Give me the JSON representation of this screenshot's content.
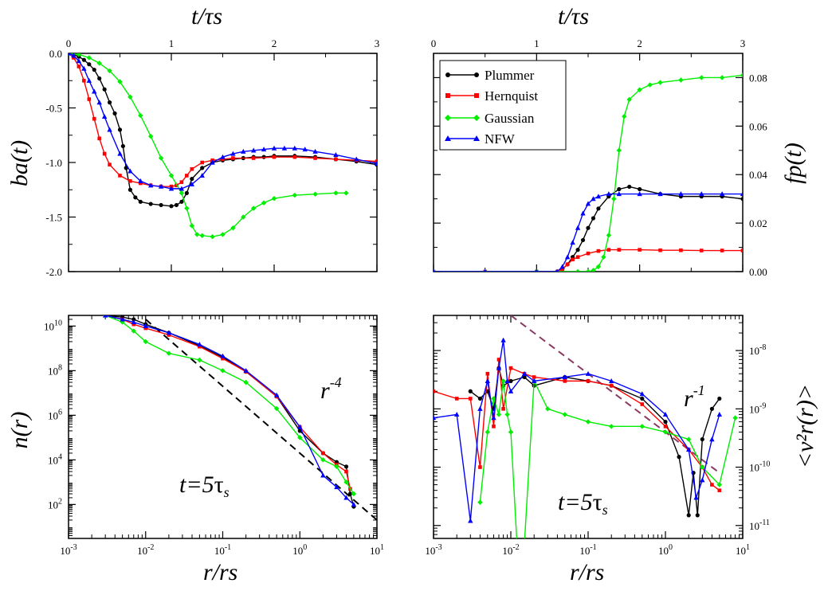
{
  "chart_data": [
    {
      "id": "ba",
      "type": "line",
      "xlabel": "t/τs",
      "ylabel": "ba(t)",
      "xlim": [
        0,
        3
      ],
      "ylim": [
        -2.0,
        0.0
      ],
      "xticks": [
        "0",
        "1",
        "2",
        "3"
      ],
      "yticks": [
        "0.0",
        "-0.5",
        "-1.0",
        "-1.5",
        "-2.0"
      ],
      "series": [
        {
          "name": "Plummer",
          "color": "#000000",
          "marker": "circle",
          "x": [
            0.0,
            0.05,
            0.1,
            0.15,
            0.2,
            0.25,
            0.3,
            0.35,
            0.4,
            0.45,
            0.5,
            0.53,
            0.56,
            0.6,
            0.65,
            0.7,
            0.8,
            0.9,
            1.0,
            1.05,
            1.1,
            1.15,
            1.2,
            1.3,
            1.4,
            1.5,
            1.6,
            1.7,
            1.8,
            1.9,
            2.0,
            2.2,
            2.4,
            2.6,
            2.8,
            3.0
          ],
          "y": [
            0.0,
            -0.01,
            -0.03,
            -0.06,
            -0.1,
            -0.15,
            -0.23,
            -0.33,
            -0.45,
            -0.55,
            -0.7,
            -0.85,
            -1.05,
            -1.25,
            -1.32,
            -1.36,
            -1.38,
            -1.39,
            -1.4,
            -1.39,
            -1.36,
            -1.28,
            -1.15,
            -1.05,
            -1.0,
            -0.98,
            -0.97,
            -0.96,
            -0.95,
            -0.95,
            -0.94,
            -0.94,
            -0.95,
            -0.97,
            -0.99,
            -1.02
          ]
        },
        {
          "name": "Hernquist",
          "color": "#ff0000",
          "marker": "square",
          "x": [
            0.0,
            0.05,
            0.1,
            0.15,
            0.2,
            0.25,
            0.3,
            0.35,
            0.4,
            0.5,
            0.6,
            0.7,
            0.8,
            0.9,
            1.0,
            1.05,
            1.1,
            1.15,
            1.2,
            1.3,
            1.4,
            1.5,
            1.6,
            1.8,
            2.0,
            2.2,
            2.4,
            2.6,
            2.8,
            3.0
          ],
          "y": [
            0.0,
            -0.04,
            -0.12,
            -0.25,
            -0.42,
            -0.6,
            -0.78,
            -0.92,
            -1.02,
            -1.12,
            -1.17,
            -1.19,
            -1.21,
            -1.22,
            -1.22,
            -1.21,
            -1.18,
            -1.12,
            -1.06,
            -1.0,
            -0.98,
            -0.97,
            -0.96,
            -0.96,
            -0.95,
            -0.95,
            -0.96,
            -0.97,
            -0.98,
            -0.99
          ]
        },
        {
          "name": "Gaussian",
          "color": "#00ee00",
          "marker": "diamond",
          "x": [
            0.0,
            0.1,
            0.2,
            0.3,
            0.4,
            0.5,
            0.6,
            0.7,
            0.8,
            0.9,
            1.0,
            1.1,
            1.15,
            1.2,
            1.25,
            1.3,
            1.4,
            1.5,
            1.6,
            1.7,
            1.8,
            1.9,
            2.0,
            2.2,
            2.4,
            2.6,
            2.7
          ],
          "y": [
            0.0,
            -0.01,
            -0.04,
            -0.09,
            -0.16,
            -0.26,
            -0.4,
            -0.57,
            -0.76,
            -0.96,
            -1.12,
            -1.28,
            -1.42,
            -1.58,
            -1.66,
            -1.67,
            -1.68,
            -1.66,
            -1.6,
            -1.5,
            -1.42,
            -1.37,
            -1.33,
            -1.3,
            -1.29,
            -1.28,
            -1.28
          ]
        },
        {
          "name": "NFW",
          "color": "#0000ff",
          "marker": "triangle",
          "x": [
            0.0,
            0.05,
            0.1,
            0.15,
            0.2,
            0.25,
            0.3,
            0.35,
            0.4,
            0.5,
            0.6,
            0.7,
            0.8,
            0.9,
            1.0,
            1.1,
            1.2,
            1.3,
            1.4,
            1.5,
            1.6,
            1.7,
            1.8,
            1.9,
            2.0,
            2.1,
            2.2,
            2.3,
            2.4,
            2.6,
            2.8,
            3.0
          ],
          "y": [
            0.0,
            -0.02,
            -0.07,
            -0.14,
            -0.25,
            -0.35,
            -0.45,
            -0.58,
            -0.7,
            -0.92,
            -1.08,
            -1.17,
            -1.21,
            -1.22,
            -1.24,
            -1.24,
            -1.2,
            -1.12,
            -1.0,
            -0.95,
            -0.92,
            -0.9,
            -0.89,
            -0.88,
            -0.87,
            -0.87,
            -0.87,
            -0.88,
            -0.9,
            -0.93,
            -0.97,
            -1.01
          ]
        }
      ]
    },
    {
      "id": "fp",
      "type": "line",
      "xlabel": "t/τs",
      "ylabel": "fp(t)",
      "xlim": [
        0,
        3
      ],
      "ylim": [
        0.0,
        0.09
      ],
      "xticks": [
        "0",
        "1",
        "2",
        "3"
      ],
      "yticks": [
        "0.00",
        "0.02",
        "0.04",
        "0.06",
        "0.08"
      ],
      "legend": {
        "position": "top-left",
        "entries": [
          "Plummer",
          "Hernquist",
          "Gaussian",
          "NFW"
        ]
      },
      "series": [
        {
          "name": "Plummer",
          "color": "#000000",
          "marker": "circle",
          "x": [
            0.0,
            0.5,
            1.0,
            1.2,
            1.25,
            1.3,
            1.35,
            1.4,
            1.45,
            1.5,
            1.55,
            1.6,
            1.7,
            1.8,
            1.9,
            2.0,
            2.2,
            2.4,
            2.6,
            2.8,
            3.0
          ],
          "y": [
            0.0,
            0.0,
            0.0,
            0.0,
            0.001,
            0.003,
            0.006,
            0.009,
            0.013,
            0.018,
            0.022,
            0.026,
            0.031,
            0.034,
            0.035,
            0.034,
            0.032,
            0.031,
            0.031,
            0.031,
            0.03
          ]
        },
        {
          "name": "Hernquist",
          "color": "#ff0000",
          "marker": "square",
          "x": [
            0.0,
            0.5,
            1.0,
            1.2,
            1.25,
            1.3,
            1.35,
            1.4,
            1.5,
            1.6,
            1.7,
            1.8,
            2.0,
            2.2,
            2.4,
            2.6,
            2.8,
            3.0
          ],
          "y": [
            0.0,
            0.0,
            0.0,
            0.0,
            0.001,
            0.003,
            0.005,
            0.006,
            0.0075,
            0.0085,
            0.009,
            0.009,
            0.009,
            0.0088,
            0.0088,
            0.0087,
            0.0087,
            0.0087
          ]
        },
        {
          "name": "Gaussian",
          "color": "#00ee00",
          "marker": "diamond",
          "x": [
            0.0,
            0.5,
            1.0,
            1.4,
            1.5,
            1.55,
            1.6,
            1.65,
            1.7,
            1.75,
            1.8,
            1.85,
            1.9,
            2.0,
            2.1,
            2.2,
            2.4,
            2.6,
            2.8,
            3.0
          ],
          "y": [
            0.0,
            0.0,
            0.0,
            0.0,
            0.0,
            0.0005,
            0.002,
            0.006,
            0.015,
            0.03,
            0.05,
            0.064,
            0.071,
            0.075,
            0.077,
            0.078,
            0.079,
            0.08,
            0.08,
            0.081
          ]
        },
        {
          "name": "NFW",
          "color": "#0000ff",
          "marker": "triangle",
          "x": [
            0.0,
            0.5,
            1.0,
            1.2,
            1.25,
            1.3,
            1.35,
            1.4,
            1.45,
            1.5,
            1.55,
            1.6,
            1.7,
            1.8,
            2.0,
            2.2,
            2.4,
            2.6,
            2.8,
            3.0
          ],
          "y": [
            0.0,
            0.0,
            0.0,
            0.0,
            0.002,
            0.006,
            0.012,
            0.018,
            0.024,
            0.028,
            0.03,
            0.031,
            0.032,
            0.032,
            0.032,
            0.032,
            0.032,
            0.032,
            0.032,
            0.032
          ]
        }
      ]
    },
    {
      "id": "nr",
      "type": "line",
      "xlabel": "r/rs",
      "ylabel": "n(r)",
      "xscale": "log",
      "yscale": "log",
      "xlim": [
        0.001,
        10
      ],
      "ylim": [
        3,
        30000000000
      ],
      "xticks": [
        {
          "base": "10",
          "exp": "-3"
        },
        {
          "base": "10",
          "exp": "-2"
        },
        {
          "base": "10",
          "exp": "-1"
        },
        {
          "base": "10",
          "exp": "0"
        },
        {
          "base": "10",
          "exp": "1"
        }
      ],
      "yticks": [
        {
          "v": 100,
          "base": "10",
          "exp": "2"
        },
        {
          "v": 10000,
          "base": "10",
          "exp": "4"
        },
        {
          "v": 1000000,
          "base": "10",
          "exp": "6"
        },
        {
          "v": 100000000,
          "base": "10",
          "exp": "8"
        },
        {
          "v": 10000000000,
          "base": "10",
          "exp": "10"
        }
      ],
      "annotation_time": {
        "lhs": "t=5",
        "tau": "τ",
        "sub": "s"
      },
      "annotation_slope": {
        "base": "r",
        "exp": "-4"
      },
      "reference_line": {
        "x": [
          0.01,
          10
        ],
        "y": [
          20000000000,
          20
        ],
        "style": "dashed",
        "color": "#000000"
      },
      "series": [
        {
          "name": "Plummer",
          "color": "#000000",
          "marker": "circle",
          "x": [
            0.003,
            0.005,
            0.007,
            0.01,
            0.02,
            0.05,
            0.1,
            0.2,
            0.5,
            1.0,
            2.0,
            3.0,
            4.0,
            4.5,
            5.0
          ],
          "y": [
            30000000000,
            25000000000,
            20000000000,
            12000000000,
            5000000000,
            1300000000,
            400000000,
            90000000,
            7000000,
            200000,
            20000,
            8000,
            5000,
            300,
            80
          ]
        },
        {
          "name": "Hernquist",
          "color": "#ff0000",
          "marker": "square",
          "x": [
            0.003,
            0.005,
            0.007,
            0.01,
            0.02,
            0.05,
            0.1,
            0.2,
            0.5,
            1.0,
            2.0,
            3.0,
            4.0,
            4.5
          ],
          "y": [
            30000000000,
            20000000000,
            12000000000,
            8000000000,
            4000000000,
            1200000000,
            350000000,
            90000000,
            7000000,
            300000,
            20000,
            6000,
            3000,
            500
          ]
        },
        {
          "name": "Gaussian",
          "color": "#00ee00",
          "marker": "diamond",
          "x": [
            0.003,
            0.005,
            0.007,
            0.01,
            0.02,
            0.05,
            0.1,
            0.2,
            0.5,
            1.0,
            2.0,
            3.0,
            4.0,
            5.0
          ],
          "y": [
            30000000000,
            15000000000,
            6000000000,
            2000000000,
            600000000,
            300000000,
            100000000,
            30000000,
            2000000,
            100000,
            10000,
            5000,
            1000,
            300
          ]
        },
        {
          "name": "NFW",
          "color": "#0000ff",
          "marker": "triangle",
          "x": [
            0.003,
            0.005,
            0.007,
            0.01,
            0.02,
            0.05,
            0.1,
            0.2,
            0.5,
            1.0,
            2.0,
            3.0,
            4.0,
            5.0
          ],
          "y": [
            30000000000,
            20000000000,
            15000000000,
            10000000000,
            5000000000,
            1500000000,
            450000000,
            100000000,
            8000000,
            300000,
            2000,
            600,
            200,
            100
          ]
        }
      ]
    },
    {
      "id": "vr",
      "type": "line",
      "xlabel": "r/rs",
      "ylabel": "<v²r(r)>",
      "xscale": "log",
      "yscale": "log",
      "xlim": [
        0.001,
        10
      ],
      "ylim": [
        6e-12,
        4e-08
      ],
      "xticks": [
        {
          "base": "10",
          "exp": "-3"
        },
        {
          "base": "10",
          "exp": "-2"
        },
        {
          "base": "10",
          "exp": "-1"
        },
        {
          "base": "10",
          "exp": "0"
        },
        {
          "base": "10",
          "exp": "1"
        }
      ],
      "yticks": [
        {
          "v": 1e-11,
          "base": "10",
          "exp": "-11"
        },
        {
          "v": 1e-10,
          "base": "10",
          "exp": "-10"
        },
        {
          "v": 1e-09,
          "base": "10",
          "exp": "-9"
        },
        {
          "v": 1e-08,
          "base": "10",
          "exp": "-8"
        }
      ],
      "annotation_time": {
        "lhs": "t=5",
        "tau": "τ",
        "sub": "s"
      },
      "annotation_slope": {
        "base": "r",
        "exp": "-1"
      },
      "reference_line": {
        "x": [
          0.01,
          5
        ],
        "y": [
          4e-08,
          8e-11
        ],
        "style": "dashed",
        "color": "#8b3a62"
      },
      "series": [
        {
          "name": "Plummer",
          "color": "#000000",
          "marker": "circle",
          "x": [
            0.003,
            0.004,
            0.005,
            0.006,
            0.007,
            0.008,
            0.01,
            0.015,
            0.02,
            0.05,
            0.1,
            0.2,
            0.5,
            1.0,
            1.5,
            2.0,
            2.3,
            2.6,
            3.0,
            4.0,
            5.0
          ],
          "y": [
            2e-09,
            1.5e-09,
            2e-09,
            1e-09,
            5e-09,
            2.5e-09,
            3e-09,
            3.5e-09,
            2.5e-09,
            3.5e-09,
            3e-09,
            2.5e-09,
            1.5e-09,
            6e-10,
            1.5e-10,
            1.5e-11,
            8e-11,
            1.5e-11,
            3e-10,
            1e-09,
            1.5e-09
          ]
        },
        {
          "name": "Hernquist",
          "color": "#ff0000",
          "marker": "square",
          "x": [
            0.001,
            0.002,
            0.003,
            0.004,
            0.005,
            0.006,
            0.007,
            0.008,
            0.01,
            0.015,
            0.02,
            0.05,
            0.1,
            0.2,
            0.5,
            1.0,
            2.0,
            3.0,
            4.0,
            5.0
          ],
          "y": [
            2e-09,
            1.5e-09,
            1.5e-09,
            1e-10,
            4e-09,
            5e-10,
            7e-09,
            1e-09,
            5e-09,
            4e-09,
            3.5e-09,
            3e-09,
            3e-09,
            2.5e-09,
            1.2e-09,
            5e-10,
            2e-10,
            1e-10,
            5e-11,
            4e-11
          ]
        },
        {
          "name": "Gaussian",
          "color": "#00ee00",
          "marker": "diamond",
          "x": [
            0.004,
            0.005,
            0.006,
            0.007,
            0.008,
            0.009,
            0.01,
            0.012,
            0.015,
            0.02,
            0.03,
            0.05,
            0.1,
            0.2,
            0.5,
            1.0,
            2.0,
            3.0,
            5.0,
            8.0
          ],
          "y": [
            2.5e-11,
            4e-10,
            1.5e-09,
            8e-10,
            3e-09,
            8e-10,
            4e-10,
            5e-12,
            5e-12,
            3e-09,
            1e-09,
            8e-10,
            6e-10,
            5e-10,
            5e-10,
            4e-10,
            3e-10,
            1e-10,
            5e-11,
            7e-10
          ]
        },
        {
          "name": "NFW",
          "color": "#0000ff",
          "marker": "triangle",
          "x": [
            0.001,
            0.002,
            0.003,
            0.004,
            0.005,
            0.006,
            0.007,
            0.008,
            0.009,
            0.01,
            0.015,
            0.02,
            0.05,
            0.1,
            0.2,
            0.5,
            1.0,
            2.0,
            2.5,
            3.0,
            4.0,
            5.0
          ],
          "y": [
            7e-10,
            8e-10,
            1.2e-11,
            1e-09,
            3e-09,
            7e-10,
            5e-09,
            1.5e-08,
            3e-09,
            2e-09,
            4e-09,
            3e-09,
            3.5e-09,
            4e-09,
            3e-09,
            1.8e-09,
            8e-10,
            2e-10,
            3e-11,
            6e-11,
            3e-10,
            8e-10
          ]
        }
      ]
    }
  ]
}
